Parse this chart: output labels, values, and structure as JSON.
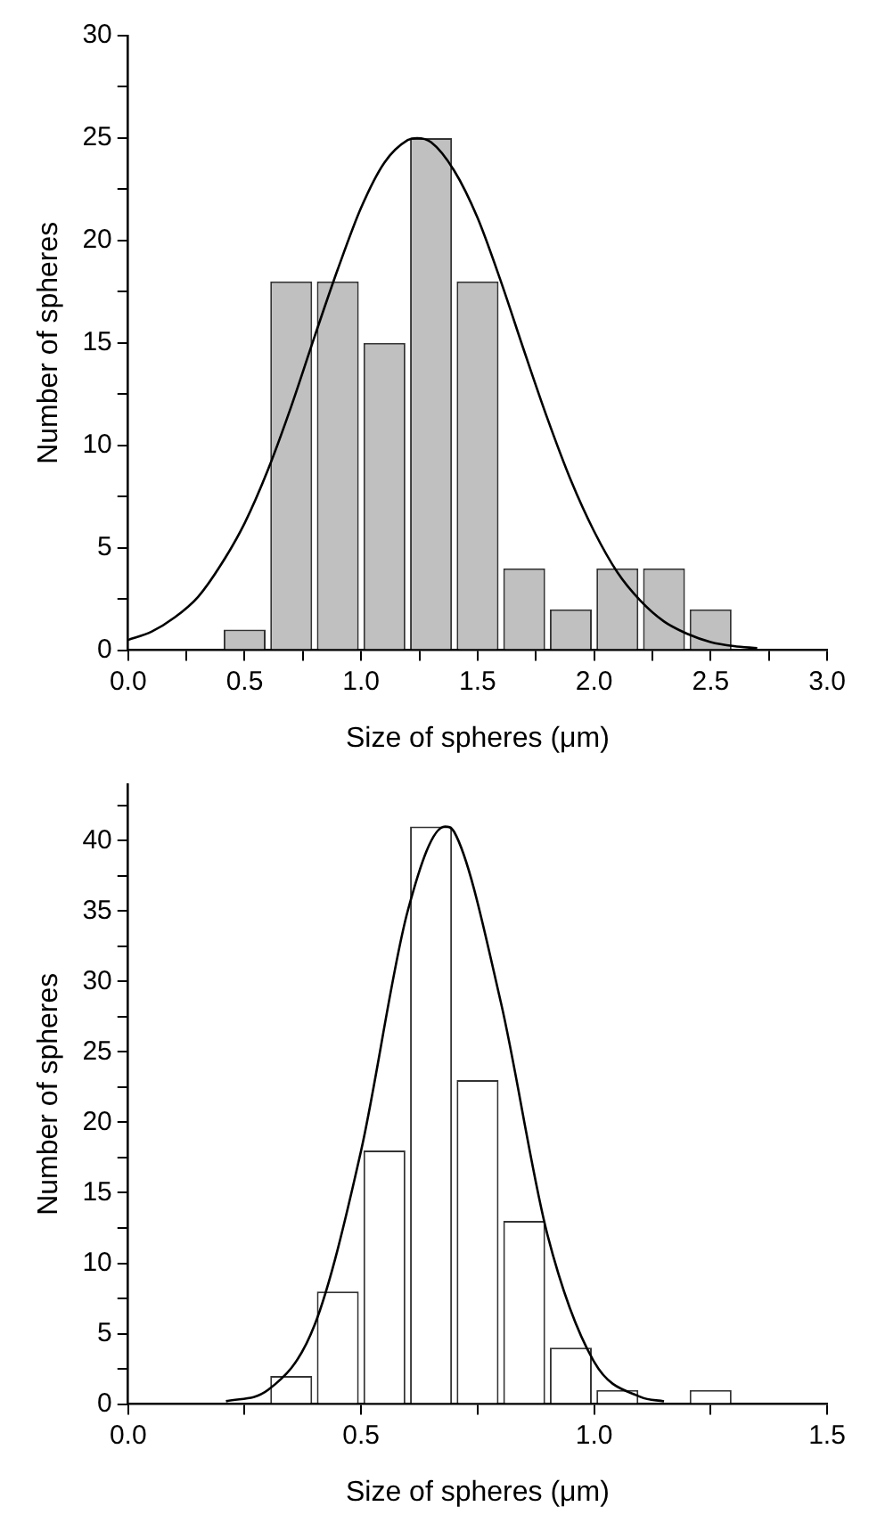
{
  "chart_data": [
    {
      "type": "histogram",
      "xlabel": "Size of spheres (μm)",
      "ylabel": "Number of spheres",
      "bins": [
        0.4,
        0.6,
        0.8,
        1.0,
        1.2,
        1.4,
        1.6,
        1.8,
        2.0,
        2.2,
        2.4,
        2.6
      ],
      "values": [
        1,
        18,
        18,
        15,
        25,
        18,
        4,
        2,
        4,
        4,
        2
      ],
      "color": "#c0c0c0",
      "series": [
        {
          "type": "line",
          "color": "#000000",
          "x": [
            0,
            0.1,
            0.2,
            0.3,
            0.4,
            0.5,
            0.6,
            0.7,
            0.8,
            0.9,
            1.0,
            1.1,
            1.2,
            1.24,
            1.3,
            1.4,
            1.5,
            1.6,
            1.7,
            1.8,
            1.9,
            2.0,
            2.1,
            2.2,
            2.3,
            2.4,
            2.5,
            2.6,
            2.7
          ],
          "values": [
            0.5,
            0.9,
            1.6,
            2.6,
            4.2,
            6.2,
            8.8,
            11.9,
            15.3,
            18.6,
            21.6,
            23.8,
            24.9,
            25,
            24.8,
            23.4,
            21.1,
            18.0,
            14.6,
            11.3,
            8.3,
            5.8,
            3.8,
            2.4,
            1.4,
            0.8,
            0.4,
            0.2,
            0.1
          ]
        }
      ],
      "xlim": [
        0,
        3
      ],
      "xticks": [
        {
          "value": 0,
          "label": "0.0"
        },
        {
          "value": 0.25,
          "label": null
        },
        0.5,
        {
          "value": 0.75,
          "label": null
        },
        {
          "value": 1,
          "label": "1.0"
        },
        {
          "value": 1.25,
          "label": null
        },
        1.5,
        {
          "value": 1.75,
          "label": null
        },
        {
          "value": 2,
          "label": "2.0"
        },
        {
          "value": 2.25,
          "label": null
        },
        2.5,
        {
          "value": 2.75,
          "label": null
        },
        {
          "value": 3,
          "label": "3.0"
        }
      ],
      "ylim": [
        0,
        30
      ],
      "yticks": [
        0,
        {
          "value": 2.5,
          "label": null
        },
        5,
        {
          "value": 7.5,
          "label": null
        },
        10,
        {
          "value": 12.5,
          "label": null
        },
        15,
        {
          "value": 17.5,
          "label": null
        },
        20,
        {
          "value": 22.5,
          "label": null
        },
        25,
        {
          "value": 27.5,
          "label": null
        },
        30
      ]
    },
    {
      "type": "histogram",
      "xlabel": "Size of spheres (μm)",
      "ylabel": "Number of spheres",
      "bins": [
        0.3,
        0.4,
        0.5,
        0.6,
        0.7,
        0.8,
        0.9,
        1.0,
        1.1,
        1.2,
        1.3
      ],
      "values": [
        2,
        8,
        18,
        41,
        23,
        13,
        4,
        1,
        0,
        1
      ],
      "color": "#ffffff",
      "series": [
        {
          "type": "line",
          "color": "#000000",
          "x": [
            0.21,
            0.3,
            0.4,
            0.5,
            0.6,
            0.68,
            0.7,
            0.8,
            0.9,
            1.0,
            1.1,
            1.15
          ],
          "values": [
            0.2,
            1,
            5.6,
            18,
            35,
            41,
            40.6,
            28.5,
            12,
            3,
            0.5,
            0.2
          ]
        }
      ],
      "xlim": [
        0,
        1.5
      ],
      "xticks": [
        {
          "value": 0,
          "label": "0.0"
        },
        {
          "value": 0.25,
          "label": null
        },
        0.5,
        {
          "value": 0.75,
          "label": null
        },
        {
          "value": 1,
          "label": "1.0"
        },
        {
          "value": 1.25,
          "label": null
        },
        1.5
      ],
      "ylim": [
        0,
        44
      ],
      "yticks": [
        0,
        {
          "value": 2.5,
          "label": null
        },
        5,
        {
          "value": 7.5,
          "label": null
        },
        10,
        {
          "value": 12.5,
          "label": null
        },
        15,
        {
          "value": 17.5,
          "label": null
        },
        20,
        {
          "value": 22.5,
          "label": null
        },
        25,
        {
          "value": 27.5,
          "label": null
        },
        30,
        {
          "value": 32.5,
          "label": null
        },
        35,
        {
          "value": 37.5,
          "label": null
        },
        40,
        {
          "value": 42.5,
          "label": null
        }
      ]
    }
  ]
}
